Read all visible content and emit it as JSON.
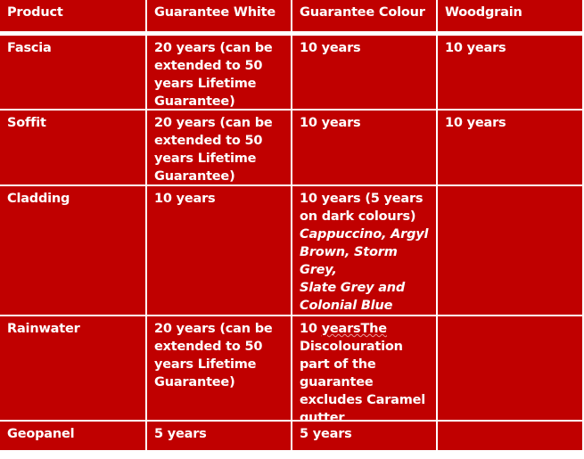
{
  "headers": [
    "Product",
    "Guarantee White",
    "Guarantee Colour",
    "Woodgrain"
  ],
  "rows": [
    {
      "product": "Fascia",
      "white": "20 years (can be extended to 50 years Lifetime Guarantee)",
      "colour": "10 years",
      "woodgrain": "10 years"
    },
    {
      "product": "Soffit",
      "white": "20 years (can be extended to 50 years Lifetime Guarantee)",
      "colour": "10 years",
      "woodgrain": "10 years"
    },
    {
      "product": "Cladding",
      "white": "10 years",
      "colour": "10 years (5 years on dark colours)",
      "colour_italic": "Cappuccino, Argyl Brown, Storm Grey,",
      "colour_italic2": "Slate Grey and Colonial Blue",
      "woodgrain": ""
    },
    {
      "product": "Rainwater",
      "white": "20 years (can be extended to 50 years Lifetime Guarantee)",
      "colour_prefix": "10 ",
      "colour_misspelled": "yearsThe",
      "colour": "Discolouration part of the guarantee excludes Caramel gutter",
      "woodgrain": ""
    },
    {
      "product": "Geopanel",
      "white": "5 years",
      "colour": "5 years",
      "woodgrain": ""
    }
  ],
  "colors": {
    "cell_background": "#c00000",
    "text": "#ffffff",
    "grid_lines": "#ffffff"
  }
}
